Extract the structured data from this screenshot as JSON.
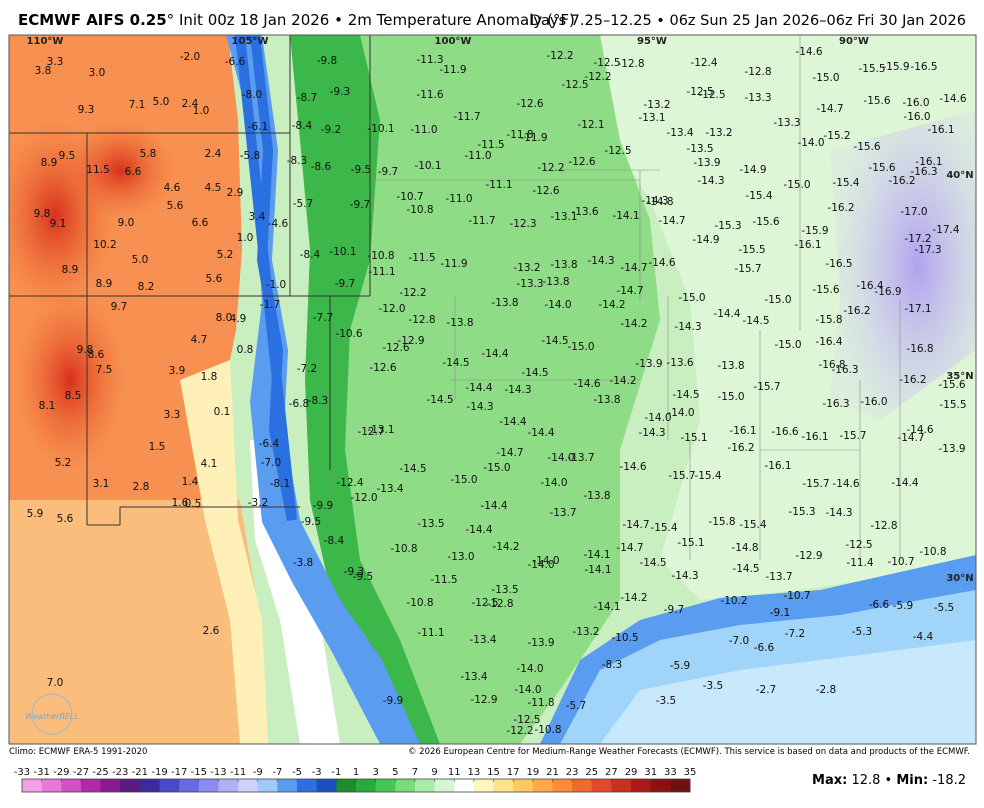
{
  "header": {
    "title_main": "ECMWF AIFS 0.25",
    "title_detail": "° Init 00z 18 Jan 2026 • 2m Temperature Anomaly (°F)",
    "title_right": "Days 7.25–12.25 • 06z Sun 25 Jan 2026–06z Fri 30 Jan 2026"
  },
  "grid_labels": [
    "110°W",
    "105°W",
    "100°W",
    "95°W",
    "90°W",
    "40°N",
    "35°N",
    "30°N"
  ],
  "logo": "WeatherBELL",
  "map_labels": [
    "3.3",
    "3.8",
    "3.0",
    "-2.0",
    "-6.6",
    "9.3",
    "7.1",
    "5.0",
    "2.4",
    "1.0",
    "-8.0",
    "-6.1",
    "8.9",
    "9.5",
    "11.5",
    "6.6",
    "5.8",
    "2.4",
    "-5.8",
    "4.6",
    "4.5",
    "2.9",
    "5.6",
    "-5.7",
    "9.8",
    "9.1",
    "9.0",
    "6.6",
    "3.4",
    "-4.6",
    "1.0",
    "10.2",
    "5.0",
    "5.2",
    "-8.4",
    "-10.1",
    "8.9",
    "5.6",
    "8.9",
    "8.2",
    "-1.0",
    "-9.7",
    "-11.1",
    "-10.8",
    "-11.5",
    "-11.9",
    "9.7",
    "-1.7",
    "8.0",
    "4.9",
    "-7.7",
    "-12.0",
    "-12.2",
    "4.7",
    "9.8",
    "8.6",
    "0.8",
    "-10.6",
    "-12.8",
    "-12.9",
    "-12.6",
    "7.5",
    "3.9",
    "-7.2",
    "-12.6",
    "1.8",
    "8.1",
    "8.5",
    "3.3",
    "0.1",
    "-6.8",
    "-8.3",
    "1.5",
    "-6.4",
    "-12.7",
    "-13.1",
    "5.2",
    "4.1",
    "-7.0",
    "3.1",
    "2.8",
    "1.4",
    "-8.1",
    "1.6",
    "0.5",
    "-3.2",
    "-9.9",
    "-12.4",
    "-12.0",
    "-13.4",
    "5.9",
    "5.6",
    "-9.5",
    "-8.4",
    "-10.8",
    "-3.8",
    "-9.3",
    "-9.5",
    "-11.5",
    "2.6",
    "-11.1",
    "7.0",
    "-9.9",
    "-9.8",
    "-11.3",
    "-11.9",
    "-12.2",
    "-12.5",
    "-12.8",
    "-12.2",
    "-12.5",
    "-12.4",
    "-12.8",
    "-14.6",
    "-15.0",
    "-15.5",
    "-15.9",
    "-16.5",
    "-8.7",
    "-9.3",
    "-11.6",
    "-12.6",
    "-13.2",
    "-12.5",
    "-12.5",
    "-13.3",
    "-14.7",
    "-15.6",
    "-16.0",
    "-14.6",
    "-8.4",
    "-9.2",
    "-10.1",
    "-11.0",
    "-11.7",
    "-11.8",
    "-11.9",
    "-12.1",
    "-13.1",
    "-13.4",
    "-13.2",
    "-13.3",
    "-15.2",
    "-16.0",
    "-16.1",
    "-8.3",
    "-8.6",
    "-11.5",
    "-11.0",
    "-12.5",
    "-13.5",
    "-14.0",
    "-15.6",
    "-9.5",
    "-9.7",
    "-10.1",
    "-12.2",
    "-12.6",
    "-13.9",
    "-14.9",
    "-15.6",
    "-16.1",
    "-16.3",
    "-16.2",
    "-11.1",
    "-14.3",
    "-15.0",
    "-15.4",
    "-10.7",
    "-11.0",
    "-12.6",
    "-15.4",
    "-14.3",
    "-14.8",
    "-9.7",
    "-10.8",
    "-13.1",
    "-13.6",
    "-14.1",
    "-14.7",
    "-16.2",
    "-17.0",
    "-11.7",
    "-12.3",
    "-15.3",
    "-15.6",
    "-15.9",
    "-17.2",
    "-17.4",
    "-14.9",
    "-16.1",
    "-15.5",
    "-17.3",
    "-13.2",
    "-13.8",
    "-14.3",
    "-14.7",
    "-14.6",
    "-15.7",
    "-16.5",
    "-13.3",
    "-13.8",
    "-14.7",
    "-15.6",
    "-16.4",
    "-16.9",
    "-13.8",
    "-14.0",
    "-14.2",
    "-15.0",
    "-15.0",
    "-17.1",
    "-14.4",
    "-14.5",
    "-15.8",
    "-16.2",
    "-13.8",
    "-14.2",
    "-14.3",
    "-14.5",
    "-15.0",
    "-15.0",
    "-16.4",
    "-16.8",
    "-14.4",
    "-14.5",
    "-14.5",
    "-13.9",
    "-13.6",
    "-13.8",
    "-16.8",
    "-16.3",
    "-16.2",
    "-15.6",
    "-14.4",
    "-14.3",
    "-14.6",
    "-14.2",
    "-15.7",
    "-14.5",
    "-14.3",
    "-13.8",
    "-14.5",
    "-15.0",
    "-16.3",
    "-16.0",
    "-15.5",
    "-14.0",
    "-14.0",
    "-14.4",
    "-14.4",
    "-14.3",
    "-15.1",
    "-16.1",
    "-16.6",
    "-16.1",
    "-15.7",
    "-14.7",
    "-14.6",
    "-16.2",
    "-13.9",
    "-14.7",
    "-14.0",
    "-13.7",
    "-14.6",
    "-16.1",
    "-14.5",
    "-15.0",
    "-15.0",
    "-14.0",
    "-15.7",
    "-15.4",
    "-15.7",
    "-14.6",
    "-14.4",
    "-13.8",
    "-14.4",
    "-13.7",
    "-15.3",
    "-14.3",
    "-13.5",
    "-14.4",
    "-14.7",
    "-15.4",
    "-15.8",
    "-15.4",
    "-12.8",
    "-15.1",
    "-14.2",
    "-14.7",
    "-14.8",
    "-12.9",
    "-12.5",
    "-13.0",
    "-14.1",
    "-14.0",
    "-14.0",
    "-14.1",
    "-14.5",
    "-14.5",
    "-11.4",
    "-10.7",
    "-10.8",
    "-14.3",
    "-13.7",
    "-13.5",
    "-14.2",
    "-12.5",
    "-12.8",
    "-14.1",
    "-9.7",
    "-10.2",
    "-10.7",
    "-6.6",
    "-5.9",
    "-5.5",
    "-10.8",
    "-9.1",
    "-7.2",
    "-5.3",
    "-4.4",
    "-13.4",
    "-13.9",
    "-13.2",
    "-10.5",
    "-7.0",
    "-6.6",
    "-8.3",
    "-5.9",
    "-13.4",
    "-14.0",
    "-14.0",
    "-12.9",
    "-11.8",
    "-3.5",
    "-2.7",
    "-2.8",
    "-3.5",
    "-5.7",
    "-12.5",
    "-12.2",
    "-10.8"
  ],
  "footer": {
    "climo": "Climo: ECMWF ERA-5 1991-2020",
    "copyright": "© 2026 European Centre for Medium-Range Weather Forecasts (ECMWF). This service is based on data and products of the ECMWF."
  },
  "colorbar": {
    "ticks": [
      -33,
      -31,
      -29,
      -27,
      -25,
      -23,
      -21,
      -19,
      -17,
      -15,
      -13,
      -11,
      -9,
      -7,
      -5,
      -3,
      -1,
      1,
      3,
      5,
      7,
      9,
      11,
      13,
      15,
      17,
      19,
      21,
      23,
      25,
      27,
      29,
      31,
      33,
      35
    ],
    "colors": [
      "#f5a0e6",
      "#e878d8",
      "#d050c8",
      "#b02aa8",
      "#8c1a8c",
      "#5a1a82",
      "#3a2a9a",
      "#4a4ac8",
      "#6a6ae0",
      "#8c8cf0",
      "#b0b0f8",
      "#d0d0fc",
      "#a0c8f8",
      "#5a9cf0",
      "#2a70e0",
      "#1a50c0",
      "#1e8c2a",
      "#2aaa3a",
      "#46c850",
      "#78dc78",
      "#a8eca8",
      "#d4f6d4",
      "#ffffff",
      "#fff6c0",
      "#ffe38a",
      "#ffc860",
      "#ffa84a",
      "#ff8a3a",
      "#f06a30",
      "#e04a28",
      "#c83020",
      "#a81a18",
      "#8c1010",
      "#701010"
    ]
  },
  "stats": {
    "max_label": "Max:",
    "max": "12.8",
    "sep": "•",
    "min_label": "Min:",
    "min": "-18.2"
  }
}
